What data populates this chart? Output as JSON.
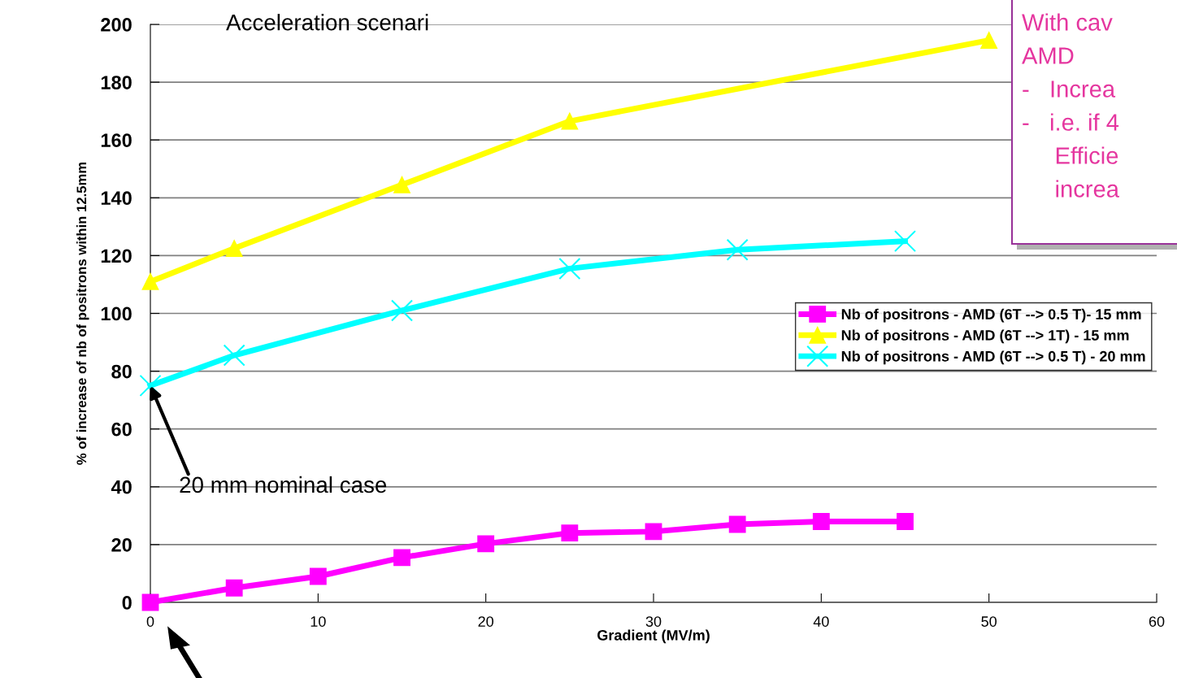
{
  "chart_data": {
    "type": "line",
    "xlabel": "Gradient (MV/m)",
    "ylabel": "% of increase of nb of positrons within 12.5mm",
    "xlim": [
      0,
      60
    ],
    "xticks": [
      0,
      10,
      20,
      30,
      40,
      50,
      60
    ],
    "ylim": [
      0,
      200
    ],
    "yticks": [
      0,
      20,
      40,
      60,
      80,
      100,
      120,
      140,
      160,
      180,
      200
    ],
    "grid": "y",
    "legend": "right",
    "series": [
      {
        "name": "Nb of positrons - AMD (6T --> 0.5 T)- 15 mm",
        "color": "#ff00ff",
        "marker": "square",
        "x": [
          0,
          5,
          10,
          15,
          20,
          25,
          30,
          35,
          40,
          45
        ],
        "values": [
          0,
          5,
          9,
          15.5,
          20.3,
          24,
          24.5,
          27,
          28,
          28
        ]
      },
      {
        "name": "Nb of positrons - AMD (6T --> 1T) - 15 mm",
        "color": "#ffff00",
        "marker": "triangle",
        "x": [
          0,
          5,
          15,
          25,
          50
        ],
        "values": [
          111,
          122.5,
          144.5,
          166.5,
          194.5
        ]
      },
      {
        "name": "Nb of positrons - AMD (6T --> 0.5 T) - 20 mm",
        "color": "#00ffff",
        "marker": "cross",
        "x": [
          0,
          5,
          15,
          25,
          35,
          45
        ],
        "values": [
          75,
          85.5,
          101,
          115.5,
          122,
          125
        ]
      }
    ],
    "annotations": [
      "Acceleration scenari",
      {
        "text": "20 mm nominal case",
        "x": 0,
        "y": 75
      },
      "With cav",
      "AMD",
      "-   Increa",
      "-   i.e. if 4",
      "     Efficie",
      "     increa"
    ]
  }
}
